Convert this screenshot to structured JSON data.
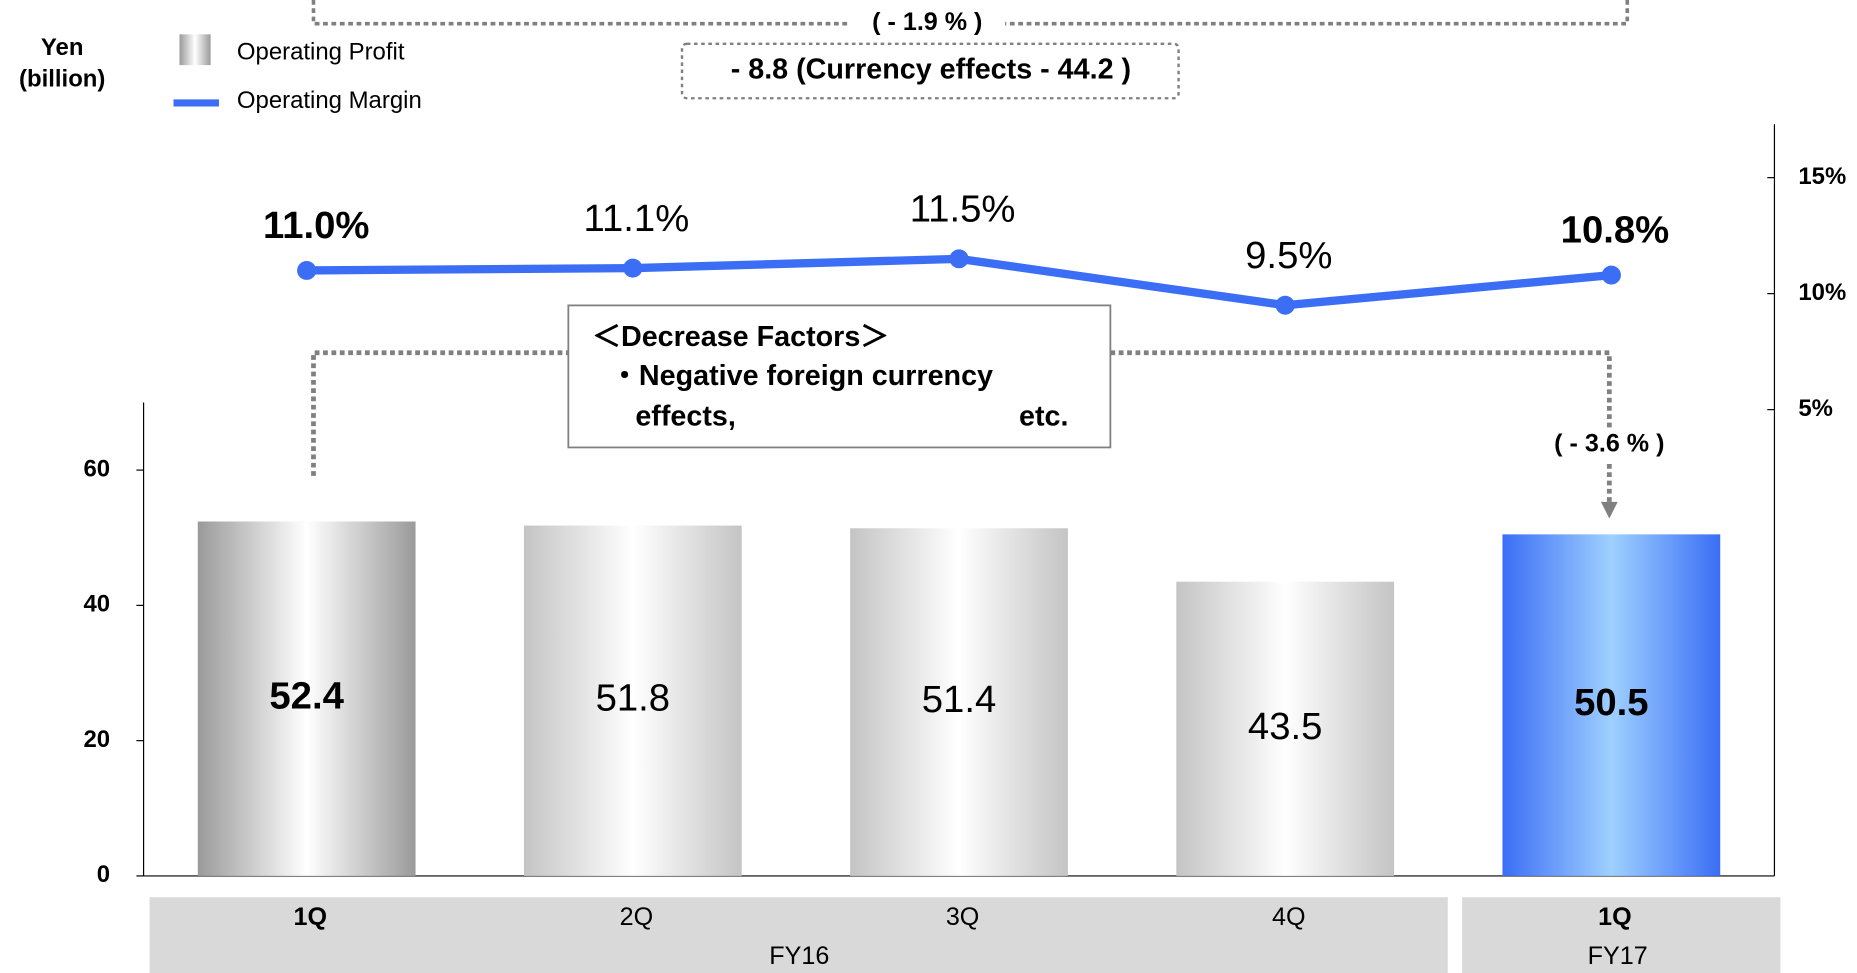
{
  "chart_data": {
    "type": "bar",
    "y_label": [
      "Yen",
      "(billion)"
    ],
    "categories": [
      "1Q",
      "2Q",
      "3Q",
      "4Q",
      "1Q"
    ],
    "groups": [
      "FY16",
      "FY17"
    ],
    "series": [
      {
        "name": "Operating Profit",
        "color": "#9a9a9a",
        "highlight_color": "#3b6ef5",
        "values": [
          52.4,
          51.8,
          51.4,
          43.5,
          50.5
        ]
      },
      {
        "name": "Operating Margin",
        "color": "#3b6ef5",
        "axis": "y2",
        "values": [
          11.0,
          11.1,
          11.5,
          9.5,
          10.8
        ],
        "value_labels": [
          "11.0%",
          "11.1%",
          "11.5%",
          "9.5%",
          "10.8%"
        ]
      }
    ],
    "ylim": [
      0,
      70
    ],
    "yticks": [
      0,
      20,
      40,
      60
    ],
    "y2lim": [
      -15.1,
      17.3
    ],
    "y2ticks": [
      {
        "value": 5,
        "label": "5%"
      },
      {
        "value": 10,
        "label": "10%"
      },
      {
        "value": 15,
        "label": "15%"
      }
    ],
    "annotations": [
      "( - 1.9 % )",
      "- 8.8 (Currency effects - 44.2 )",
      "＜Decrease Factors＞",
      "・Negative foreign currency",
      "effects,",
      "etc.",
      "( - 3.6 % )"
    ]
  }
}
